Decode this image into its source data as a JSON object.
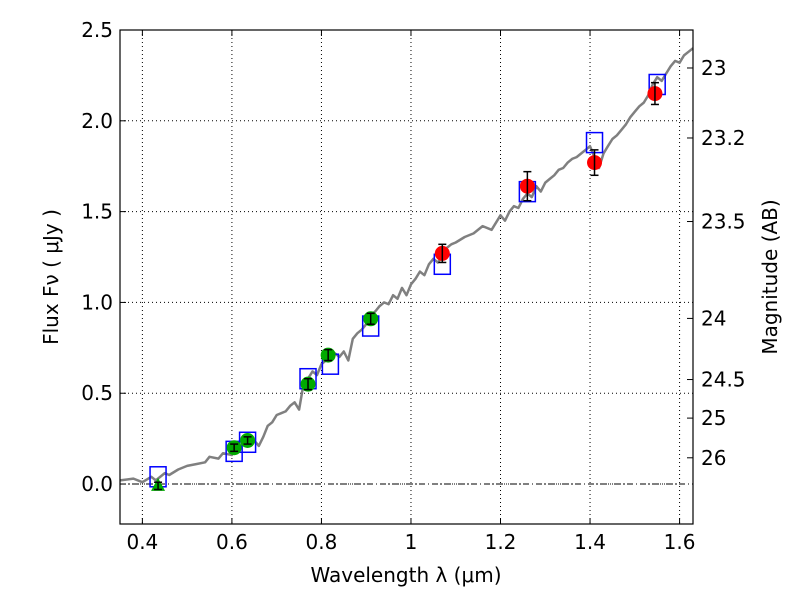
{
  "chart_data": {
    "type": "scatter",
    "xlabel": "Wavelength  λ (μm)",
    "ylabel": "Flux  Fν  ( μJy )",
    "y2label": "Magnitude (AB)",
    "xlim": [
      0.35,
      1.63
    ],
    "ylim": [
      -0.22,
      2.5
    ],
    "grid": true,
    "x_ticks": [
      0.4,
      0.6,
      0.8,
      1.0,
      1.2,
      1.4,
      1.6
    ],
    "x_tick_labels": [
      "0.4",
      "0.6",
      "0.8",
      "1",
      "1.2",
      "1.4",
      "1.6"
    ],
    "y_ticks": [
      0.0,
      0.5,
      1.0,
      1.5,
      2.0,
      2.5
    ],
    "y_tick_labels": [
      "0.0",
      "0.5",
      "1.0",
      "1.5",
      "2.0",
      "2.5"
    ],
    "y2_ticks": [
      {
        "label": "23",
        "mag": 23.0
      },
      {
        "label": "23.2",
        "mag": 23.2
      },
      {
        "label": "23.5",
        "mag": 23.5
      },
      {
        "label": "24",
        "mag": 24.0
      },
      {
        "label": "24.5",
        "mag": 24.5
      },
      {
        "label": "25",
        "mag": 25.0
      },
      {
        "label": "26",
        "mag": 26.0
      }
    ],
    "series": [
      {
        "type": "line",
        "color": "#808080",
        "x": [
          0.35,
          0.38,
          0.4,
          0.42,
          0.43,
          0.45,
          0.46,
          0.48,
          0.5,
          0.52,
          0.54,
          0.55,
          0.57,
          0.58,
          0.6,
          0.61,
          0.62,
          0.63,
          0.64,
          0.65,
          0.66,
          0.67,
          0.68,
          0.69,
          0.7,
          0.71,
          0.72,
          0.73,
          0.74,
          0.75,
          0.76,
          0.77,
          0.78,
          0.79,
          0.8,
          0.81,
          0.82,
          0.83,
          0.84,
          0.85,
          0.86,
          0.87,
          0.88,
          0.89,
          0.9,
          0.91,
          0.92,
          0.93,
          0.94,
          0.95,
          0.96,
          0.97,
          0.98,
          0.99,
          1.0,
          1.01,
          1.02,
          1.03,
          1.04,
          1.05,
          1.06,
          1.07,
          1.08,
          1.09,
          1.1,
          1.12,
          1.14,
          1.16,
          1.18,
          1.2,
          1.21,
          1.22,
          1.23,
          1.24,
          1.25,
          1.26,
          1.27,
          1.28,
          1.29,
          1.3,
          1.31,
          1.32,
          1.33,
          1.34,
          1.35,
          1.36,
          1.37,
          1.38,
          1.39,
          1.4,
          1.41,
          1.42,
          1.43,
          1.44,
          1.45,
          1.46,
          1.47,
          1.48,
          1.49,
          1.5,
          1.51,
          1.52,
          1.53,
          1.54,
          1.55,
          1.56,
          1.57,
          1.58,
          1.59,
          1.6,
          1.61,
          1.62,
          1.63
        ],
        "y": [
          0.02,
          0.03,
          0.01,
          0.04,
          0.02,
          0.06,
          0.05,
          0.08,
          0.1,
          0.11,
          0.12,
          0.15,
          0.14,
          0.17,
          0.16,
          0.22,
          0.2,
          0.26,
          0.22,
          0.24,
          0.21,
          0.26,
          0.32,
          0.34,
          0.38,
          0.39,
          0.4,
          0.43,
          0.45,
          0.41,
          0.55,
          0.58,
          0.62,
          0.6,
          0.66,
          0.68,
          0.69,
          0.72,
          0.7,
          0.73,
          0.68,
          0.8,
          0.83,
          0.85,
          0.88,
          0.93,
          0.95,
          0.98,
          1.0,
          0.99,
          1.04,
          1.02,
          1.08,
          1.04,
          1.1,
          1.13,
          1.17,
          1.15,
          1.21,
          1.24,
          1.22,
          1.25,
          1.3,
          1.32,
          1.33,
          1.36,
          1.38,
          1.42,
          1.4,
          1.48,
          1.45,
          1.5,
          1.53,
          1.52,
          1.57,
          1.6,
          1.58,
          1.64,
          1.61,
          1.66,
          1.68,
          1.7,
          1.73,
          1.74,
          1.77,
          1.79,
          1.8,
          1.82,
          1.84,
          1.86,
          1.8,
          1.74,
          1.82,
          1.86,
          1.9,
          1.92,
          1.95,
          1.98,
          2.02,
          2.05,
          2.08,
          2.1,
          2.14,
          2.2,
          2.24,
          2.22,
          2.26,
          2.3,
          2.33,
          2.32,
          2.36,
          2.38,
          2.4
        ]
      },
      {
        "type": "open-square",
        "color": "#0000ff",
        "x": [
          0.435,
          0.605,
          0.635,
          0.77,
          0.82,
          0.91,
          1.07,
          1.26,
          1.41,
          1.55
        ],
        "y": [
          0.04,
          0.18,
          0.23,
          0.58,
          0.66,
          0.87,
          1.21,
          1.61,
          1.88,
          2.2
        ]
      },
      {
        "type": "point-error",
        "color": "#00aa00",
        "x": [
          0.605,
          0.635,
          0.77,
          0.815,
          0.91
        ],
        "y": [
          0.2,
          0.24,
          0.55,
          0.71,
          0.91
        ],
        "err": [
          0.02,
          0.02,
          0.03,
          0.03,
          0.03
        ]
      },
      {
        "type": "point-error",
        "color": "#ff0000",
        "x": [
          1.07,
          1.26,
          1.41,
          1.545
        ],
        "y": [
          1.27,
          1.64,
          1.77,
          2.15
        ],
        "err": [
          0.05,
          0.08,
          0.07,
          0.06
        ]
      },
      {
        "type": "triangle-error",
        "color": "#00aa00",
        "x": [
          0.435
        ],
        "y": [
          -0.01
        ],
        "err": [
          0.02
        ]
      }
    ]
  }
}
